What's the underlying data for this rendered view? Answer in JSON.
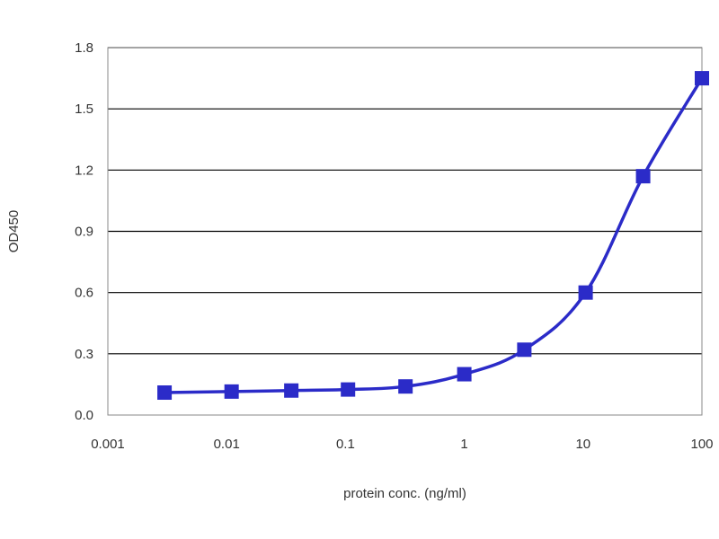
{
  "chart_data": {
    "type": "line",
    "title": "",
    "xlabel": "protein conc. (ng/ml)",
    "ylabel": "OD450",
    "x_scale": "log",
    "xlim": [
      0.001,
      100
    ],
    "ylim": [
      0,
      1.8
    ],
    "x_ticks": [
      0.001,
      0.01,
      0.1,
      1,
      10,
      100
    ],
    "x_tick_labels": [
      "0.001",
      "0.01",
      "0.1",
      "1",
      "10",
      "100"
    ],
    "y_ticks": [
      0,
      0.3,
      0.6,
      0.9,
      1.2,
      1.5,
      1.8
    ],
    "y_tick_labels": [
      "0.0",
      "0.3",
      "0.6",
      "0.9",
      "1.2",
      "1.5",
      "1.8"
    ],
    "grid": "horizontal",
    "legend": "none",
    "series": [
      {
        "color": "#2b2bc8",
        "marker": "square",
        "smooth": true,
        "x": [
          0.003,
          0.011,
          0.035,
          0.105,
          0.32,
          1.0,
          3.2,
          10.5,
          32,
          100
        ],
        "y": [
          0.11,
          0.115,
          0.12,
          0.125,
          0.14,
          0.2,
          0.32,
          0.6,
          1.17,
          1.65
        ]
      }
    ]
  }
}
